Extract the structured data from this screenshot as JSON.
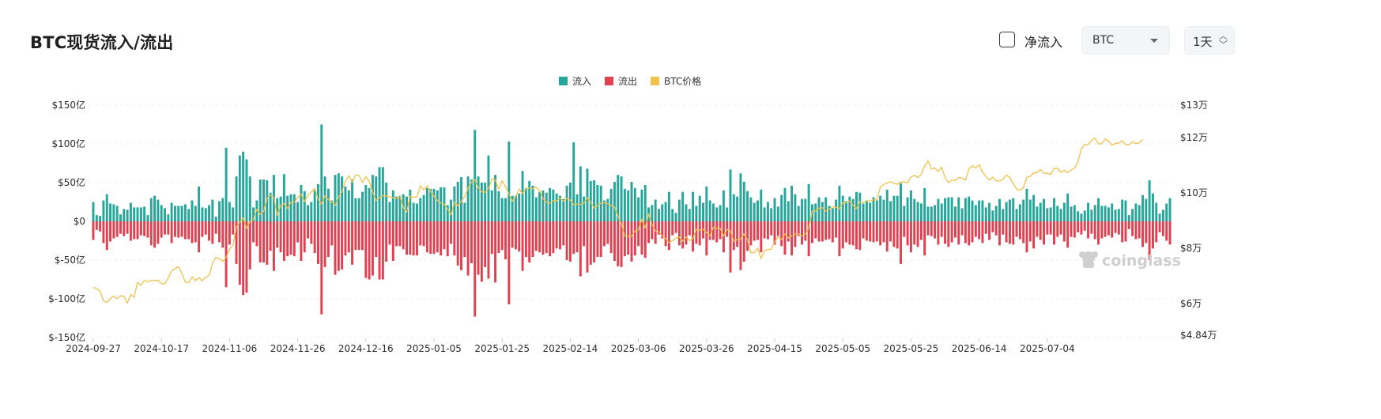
{
  "header": {
    "title": "BTC现货流入/流出",
    "net_inflow_label": "净流入",
    "asset_select": "BTC",
    "interval_select": "1天"
  },
  "watermark": "coinglass",
  "chart_data": {
    "type": "bar",
    "title": "BTC现货流入/流出",
    "legend": [
      "流入",
      "流出",
      "BTC价格"
    ],
    "legend_position": "top-center",
    "grid": true,
    "colors": {
      "inflow": "#26a69a",
      "outflow": "#e0404f",
      "price": "#f0c14b"
    },
    "x_start_date": "2024-09-27",
    "x_ticks": [
      "2024-09-27",
      "2024-10-17",
      "2024-11-06",
      "2024-11-26",
      "2024-12-16",
      "2025-01-05",
      "2025-01-25",
      "2025-02-14",
      "2025-03-06",
      "2025-03-26",
      "2025-04-15",
      "2025-05-05",
      "2025-05-25",
      "2025-06-14",
      "2025-07-04"
    ],
    "y_left": {
      "label": "",
      "ticks": [
        "$150亿",
        "$100亿",
        "$50亿",
        "$0",
        "$-50亿",
        "$-100亿",
        "$-150亿"
      ],
      "values": [
        150,
        100,
        50,
        0,
        -50,
        -100,
        -150
      ],
      "unit": "亿美元"
    },
    "y_right": {
      "label": "",
      "ticks": [
        "$13万",
        "$12万",
        "$10万",
        "$8万",
        "$6万",
        "$4.84万"
      ],
      "values": [
        130000,
        120000,
        100000,
        80000,
        60000,
        48400
      ]
    },
    "series": [
      {
        "name": "流入",
        "unit": "亿美元",
        "values": [
          25,
          8,
          7,
          27,
          35,
          23,
          22,
          20,
          9,
          16,
          15,
          24,
          18,
          18,
          18,
          19,
          8,
          30,
          33,
          28,
          21,
          17,
          9,
          24,
          20,
          20,
          20,
          22,
          16,
          27,
          20,
          45,
          18,
          17,
          21,
          28,
          6,
          26,
          30,
          95,
          25,
          18,
          58,
          85,
          90,
          80,
          58,
          18,
          27,
          54,
          54,
          53,
          37,
          60,
          30,
          32,
          61,
          33,
          35,
          35,
          25,
          47,
          39,
          21,
          25,
          40,
          48,
          125,
          58,
          42,
          27,
          60,
          62,
          58,
          45,
          40,
          54,
          30,
          30,
          38,
          47,
          43,
          60,
          58,
          70,
          70,
          50,
          25,
          40,
          32,
          33,
          35,
          32,
          41,
          24,
          23,
          30,
          34,
          43,
          42,
          42,
          40,
          44,
          44,
          21,
          28,
          45,
          51,
          57,
          24,
          58,
          54,
          118,
          58,
          50,
          50,
          85,
          40,
          60,
          39,
          30,
          30,
          103,
          33,
          33,
          36,
          65,
          43,
          52,
          46,
          31,
          38,
          40,
          37,
          43,
          41,
          36,
          33,
          29,
          46,
          50,
          102,
          35,
          71,
          32,
          68,
          52,
          53,
          47,
          46,
          27,
          29,
          42,
          51,
          60,
          58,
          42,
          40,
          51,
          43,
          31,
          41,
          47,
          18,
          21,
          28,
          16,
          22,
          25,
          38,
          16,
          11,
          28,
          38,
          22,
          16,
          38,
          20,
          33,
          24,
          45,
          27,
          23,
          18,
          21,
          40,
          18,
          67,
          35,
          32,
          62,
          51,
          39,
          31,
          24,
          27,
          41,
          18,
          25,
          17,
          30,
          19,
          34,
          43,
          26,
          46,
          35,
          20,
          29,
          29,
          48,
          22,
          23,
          31,
          25,
          31,
          20,
          17,
          28,
          46,
          33,
          26,
          32,
          29,
          38,
          37,
          23,
          27,
          24,
          31,
          27,
          33,
          28,
          41,
          26,
          33,
          33,
          49,
          20,
          31,
          40,
          29,
          25,
          23,
          43,
          19,
          19,
          21,
          29,
          23,
          30,
          31,
          31,
          19,
          31,
          17,
          30,
          32,
          27,
          21,
          27,
          27,
          18,
          24,
          14,
          20,
          29,
          16,
          25,
          28,
          30,
          16,
          22,
          28,
          42,
          28,
          34,
          19,
          24,
          29,
          17,
          18,
          30,
          20,
          16,
          24,
          36,
          19,
          21,
          13,
          10,
          14,
          24,
          15,
          21,
          30,
          20,
          20,
          18,
          23,
          15,
          16,
          28,
          27,
          8,
          16,
          23,
          21,
          34,
          29,
          53,
          36,
          24,
          10,
          15,
          23,
          30
        ]
      },
      {
        "name": "流出",
        "unit": "亿美元",
        "values": [
          -24,
          -11,
          -13,
          -28,
          -37,
          -26,
          -22,
          -20,
          -16,
          -19,
          -16,
          -25,
          -23,
          -23,
          -18,
          -19,
          -21,
          -31,
          -34,
          -29,
          -21,
          -17,
          -17,
          -28,
          -20,
          -21,
          -20,
          -23,
          -23,
          -28,
          -27,
          -40,
          -20,
          -17,
          -25,
          -29,
          -16,
          -27,
          -34,
          -85,
          -30,
          -17,
          -55,
          -82,
          -95,
          -92,
          -62,
          -27,
          -32,
          -53,
          -53,
          -56,
          -38,
          -64,
          -34,
          -40,
          -51,
          -45,
          -43,
          -45,
          -27,
          -51,
          -40,
          -22,
          -29,
          -41,
          -55,
          -120,
          -59,
          -46,
          -31,
          -69,
          -64,
          -62,
          -44,
          -40,
          -56,
          -37,
          -37,
          -37,
          -73,
          -75,
          -70,
          -46,
          -75,
          -75,
          -52,
          -30,
          -51,
          -32,
          -32,
          -36,
          -43,
          -43,
          -44,
          -44,
          -31,
          -32,
          -40,
          -42,
          -42,
          -40,
          -44,
          -36,
          -45,
          -29,
          -44,
          -57,
          -63,
          -46,
          -70,
          -54,
          -123,
          -69,
          -78,
          -59,
          -74,
          -42,
          -79,
          -41,
          -37,
          -49,
          -107,
          -34,
          -36,
          -39,
          -64,
          -46,
          -53,
          -46,
          -38,
          -40,
          -43,
          -41,
          -45,
          -41,
          -35,
          -36,
          -31,
          -50,
          -52,
          -42,
          -40,
          -71,
          -32,
          -66,
          -56,
          -53,
          -46,
          -46,
          -32,
          -29,
          -41,
          -51,
          -58,
          -59,
          -45,
          -43,
          -52,
          -44,
          -32,
          -43,
          -47,
          -28,
          -23,
          -29,
          -17,
          -22,
          -32,
          -37,
          -18,
          -15,
          -31,
          -35,
          -30,
          -18,
          -39,
          -29,
          -31,
          -22,
          -44,
          -24,
          -24,
          -27,
          -23,
          -40,
          -20,
          -66,
          -37,
          -33,
          -63,
          -52,
          -38,
          -31,
          -25,
          -24,
          -40,
          -22,
          -23,
          -18,
          -30,
          -19,
          -32,
          -43,
          -26,
          -44,
          -33,
          -19,
          -30,
          -25,
          -45,
          -28,
          -22,
          -26,
          -26,
          -24,
          -23,
          -27,
          -21,
          -45,
          -35,
          -27,
          -30,
          -31,
          -36,
          -37,
          -22,
          -25,
          -26,
          -27,
          -26,
          -31,
          -27,
          -39,
          -26,
          -33,
          -35,
          -55,
          -20,
          -31,
          -40,
          -30,
          -33,
          -24,
          -44,
          -18,
          -19,
          -22,
          -30,
          -20,
          -29,
          -33,
          -27,
          -21,
          -30,
          -18,
          -28,
          -31,
          -27,
          -20,
          -23,
          -28,
          -16,
          -24,
          -14,
          -18,
          -31,
          -17,
          -27,
          -29,
          -30,
          -20,
          -23,
          -28,
          -40,
          -26,
          -35,
          -20,
          -24,
          -30,
          -17,
          -17,
          -30,
          -20,
          -17,
          -26,
          -34,
          -20,
          -21,
          -14,
          -17,
          -12,
          -22,
          -16,
          -23,
          -30,
          -22,
          -20,
          -18,
          -21,
          -15,
          -17,
          -27,
          -26,
          -10,
          -19,
          -23,
          -22,
          -33,
          -28,
          -50,
          -35,
          -27,
          -14,
          -19,
          -25,
          -30
        ]
      },
      {
        "name": "BTC价格",
        "unit": "USD",
        "values": [
          65800,
          65400,
          64500,
          61000,
          60400,
          61800,
          62700,
          61800,
          62800,
          62700,
          60100,
          63300,
          62300,
          67700,
          66600,
          68400,
          67800,
          68400,
          68400,
          68500,
          67200,
          67100,
          69200,
          71900,
          72600,
          73400,
          70900,
          67800,
          67500,
          69700,
          68300,
          69400,
          68200,
          69500,
          70200,
          74600,
          76700,
          76200,
          75200,
          76700,
          79700,
          81100,
          87600,
          89500,
          91000,
          87100,
          89800,
          90500,
          94100,
          92200,
          93300,
          98100,
          99300,
          98400,
          91800,
          95600,
          96200,
          94300,
          96600,
          96700,
          98300,
          99600,
          96800,
          99200,
          100400,
          101600,
          97700,
          96000,
          99000,
          97600,
          96700,
          95400,
          98600,
          100500,
          104300,
          106200,
          103800,
          106500,
          106300,
          103800,
          105800,
          104200,
          100200,
          97200,
          98300,
          99000,
          98800,
          98600,
          98200,
          97900,
          99000,
          94700,
          93000,
          98800,
          98400,
          98600,
          102600,
          101000,
          102600,
          100500,
          98800,
          97200,
          96300,
          95900,
          94200,
          92000,
          96600,
          95400,
          96900,
          98700,
          101700,
          103900,
          104800,
          101900,
          100400,
          100200,
          101500,
          105100,
          104700,
          101400,
          104400,
          102300,
          99700,
          97000,
          98700,
          101400,
          99700,
          101500,
          101800,
          101500,
          102100,
          100800,
          97800,
          96700,
          96300,
          97100,
          97200,
          98100,
          97000,
          98100,
          97400,
          95700,
          96000,
          95800,
          96300,
          98200,
          96700,
          94500,
          95300,
          96400,
          96500,
          96100,
          95500,
          94900,
          91500,
          88700,
          84400,
          84200,
          84400,
          86200,
          86700,
          90500,
          87300,
          92400,
          88400,
          86200,
          86000,
          84300,
          83600,
          82000,
          82600,
          83700,
          84100,
          82500,
          84100,
          82700,
          83500,
          86900,
          86500,
          86900,
          85700,
          84400,
          87600,
          87200,
          87200,
          84300,
          86800,
          86300,
          82500,
          83100,
          83300,
          85200,
          83100,
          78300,
          78500,
          80000,
          76300,
          79100,
          79500,
          79700,
          82400,
          84000,
          83200,
          85200,
          83700,
          84500,
          85100,
          85100,
          84500,
          85100,
          87300,
          93400,
          93500,
          94500,
          94700,
          93400,
          94100,
          95000,
          94800,
          94200,
          96500,
          96500,
          97000,
          95500,
          94300,
          96800,
          96500,
          97000,
          97100,
          97500,
          97600,
          102000,
          103000,
          103700,
          104000,
          103500,
          103100,
          104000,
          103900,
          103700,
          105700,
          106400,
          105500,
          106800,
          109600,
          111600,
          108600,
          109100,
          107700,
          109300,
          105600,
          103700,
          104600,
          104500,
          105600,
          105300,
          104600,
          108700,
          109800,
          109000,
          110200,
          107500,
          106000,
          104600,
          105700,
          104400,
          104300,
          104900,
          106500,
          105600,
          103300,
          101500,
          100900,
          102000,
          105700,
          106000,
          107200,
          107400,
          108500,
          107100,
          107100,
          106700,
          108800,
          108900,
          107400,
          108200,
          107300,
          108300,
          108900,
          111300,
          115900,
          117500,
          117500,
          119000,
          119800,
          117700,
          117800,
          119500,
          118700,
          117200,
          117900,
          118000,
          118800,
          117400,
          117400,
          118500,
          117800,
          118100,
          119400
        ]
      }
    ]
  }
}
